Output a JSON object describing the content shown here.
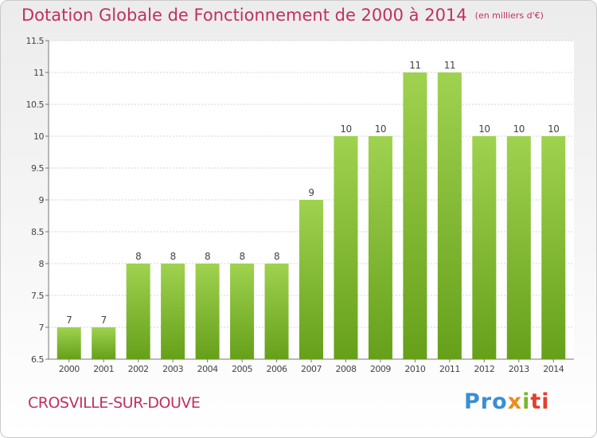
{
  "header": {
    "title": "Dotation Globale de Fonctionnement de 2000 à 2014",
    "unit": "(en milliers d'€)"
  },
  "footer": {
    "place": "CROSVILLE-SUR-DOUVE",
    "brand_parts": [
      "Pro",
      "x",
      "i",
      "ti"
    ]
  },
  "colors": {
    "title": "#c0305e",
    "bar_top": "#9fd24f",
    "bar_bottom": "#66a01a",
    "grid": "#d3d3d3"
  },
  "chart_data": {
    "type": "bar",
    "title": "Dotation Globale de Fonctionnement de 2000 à 2014",
    "xlabel": "",
    "ylabel": "",
    "categories": [
      "2000",
      "2001",
      "2002",
      "2003",
      "2004",
      "2005",
      "2006",
      "2007",
      "2008",
      "2009",
      "2010",
      "2011",
      "2012",
      "2013",
      "2014"
    ],
    "values": [
      7,
      7,
      8,
      8,
      8,
      8,
      8,
      9,
      10,
      10,
      11,
      11,
      10,
      10,
      10
    ],
    "labels": [
      "7",
      "7",
      "8",
      "8",
      "8",
      "8",
      "8",
      "9",
      "10",
      "10",
      "11",
      "11",
      "10",
      "10",
      "10"
    ],
    "ylim": [
      6.5,
      11.5
    ],
    "yticks": [
      "6.5",
      "7",
      "7.5",
      "8",
      "8.5",
      "9",
      "9.5",
      "10",
      "10.5",
      "11",
      "11.5"
    ],
    "grid": true,
    "legend": "none"
  }
}
